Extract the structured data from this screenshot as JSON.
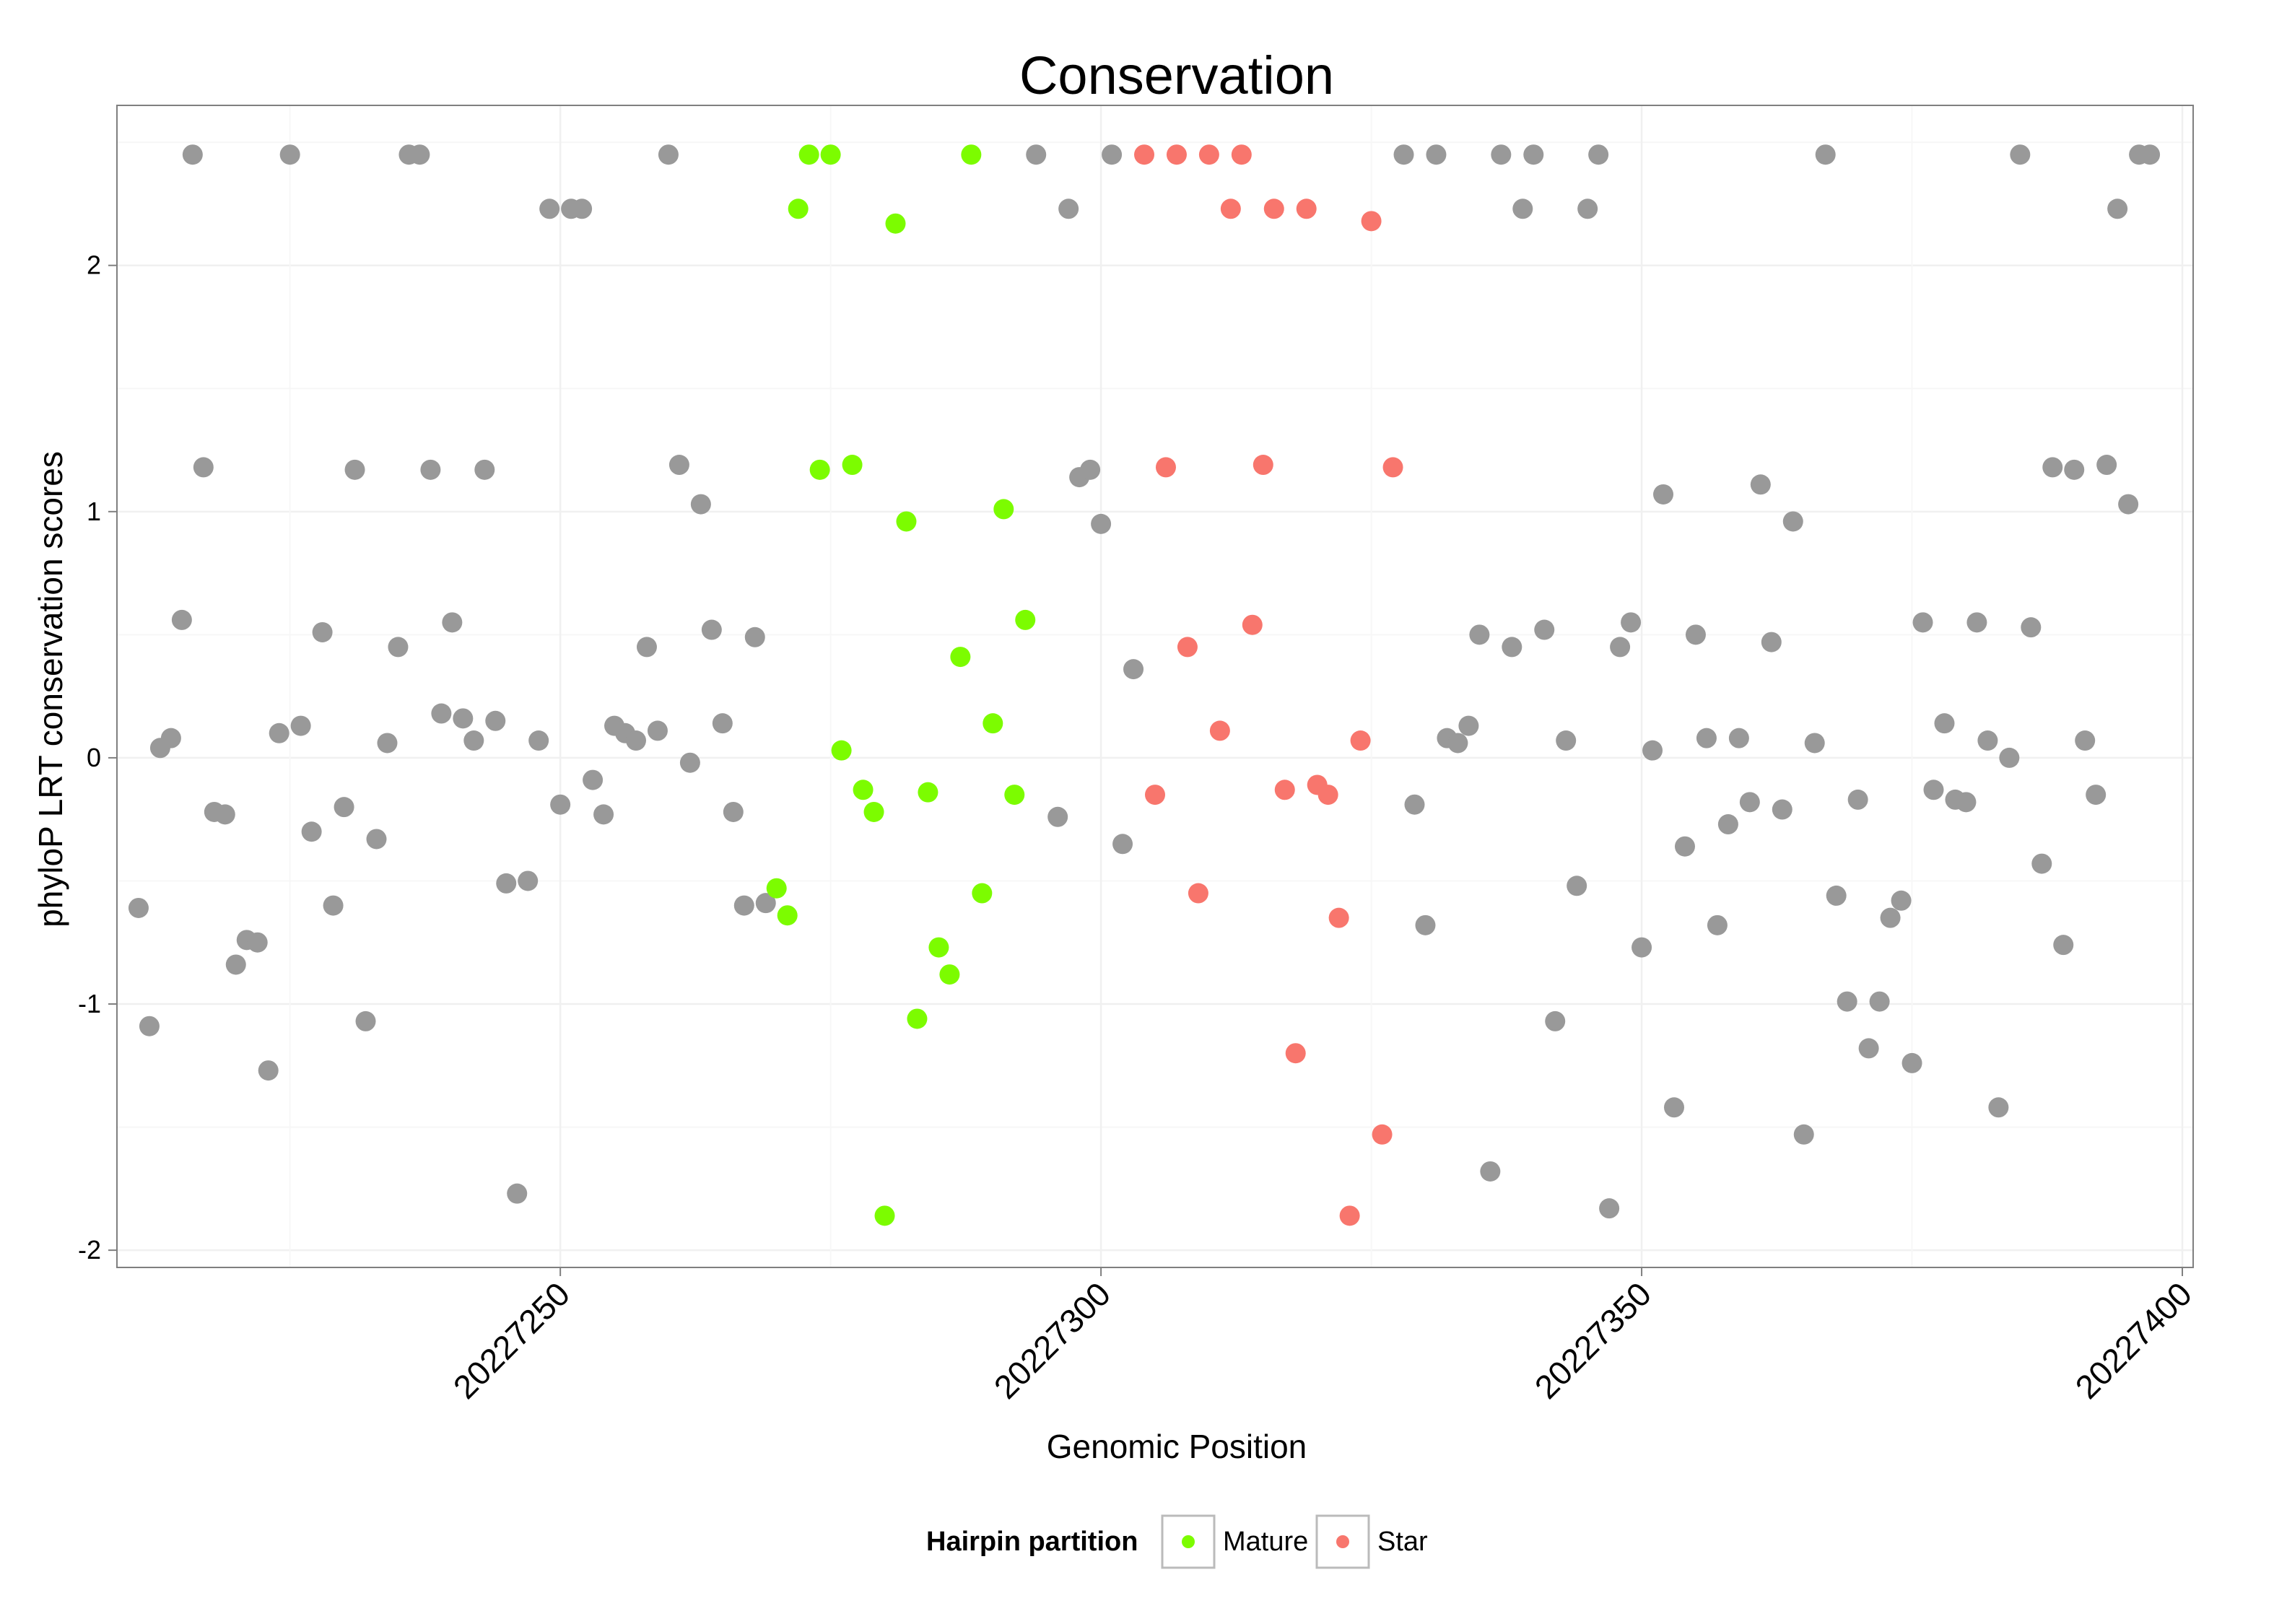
{
  "chart_data": {
    "type": "scatter",
    "title": "Conservation",
    "xlabel": "Genomic Position",
    "ylabel": "phyloP LRT conservation scores",
    "xlim": [
      20227209,
      20227401
    ],
    "ylim": [
      -2.07,
      2.65
    ],
    "x_ticks": [
      {
        "value": 20227250,
        "label": "20227250"
      },
      {
        "value": 20227300,
        "label": "20227300"
      },
      {
        "value": 20227350,
        "label": "20227350"
      },
      {
        "value": 20227400,
        "label": "20227400"
      }
    ],
    "y_ticks": [
      {
        "value": -2,
        "label": "-2"
      },
      {
        "value": -1,
        "label": "-1"
      },
      {
        "value": 0,
        "label": "0"
      },
      {
        "value": 1,
        "label": "1"
      },
      {
        "value": 2,
        "label": "2"
      }
    ],
    "grid": true,
    "legend": {
      "title": "Hairpin partition",
      "position": "bottom",
      "entries": [
        {
          "label": "Mature",
          "color": "#7cfc00"
        },
        {
          "label": "Star",
          "color": "#f8766d"
        }
      ]
    },
    "colors": {
      "other": "#999999",
      "mature": "#7cfc00",
      "star": "#f8766d"
    },
    "series": [
      {
        "group": "other",
        "color": "#999999",
        "points": [
          [
            20227211,
            -0.61
          ],
          [
            20227212,
            -1.09
          ],
          [
            20227213,
            0.04
          ],
          [
            20227214,
            0.08
          ],
          [
            20227215,
            0.56
          ],
          [
            20227216,
            2.45
          ],
          [
            20227217,
            1.18
          ],
          [
            20227218,
            -0.22
          ],
          [
            20227219,
            -0.23
          ],
          [
            20227220,
            -0.84
          ],
          [
            20227221,
            -0.74
          ],
          [
            20227222,
            -0.75
          ],
          [
            20227223,
            -1.27
          ],
          [
            20227224,
            0.1
          ],
          [
            20227225,
            2.45
          ],
          [
            20227226,
            0.13
          ],
          [
            20227227,
            -0.3
          ],
          [
            20227228,
            0.51
          ],
          [
            20227229,
            -0.6
          ],
          [
            20227230,
            -0.2
          ],
          [
            20227231,
            1.17
          ],
          [
            20227232,
            -1.07
          ],
          [
            20227233,
            -0.33
          ],
          [
            20227234,
            0.06
          ],
          [
            20227235,
            0.45
          ],
          [
            20227236,
            2.45
          ],
          [
            20227237,
            2.45
          ],
          [
            20227238,
            1.17
          ],
          [
            20227239,
            0.18
          ],
          [
            20227240,
            0.55
          ],
          [
            20227241,
            0.16
          ],
          [
            20227242,
            0.07
          ],
          [
            20227243,
            1.17
          ],
          [
            20227244,
            0.15
          ],
          [
            20227245,
            -0.51
          ],
          [
            20227246,
            -1.77
          ],
          [
            20227247,
            -0.5
          ],
          [
            20227248,
            0.07
          ],
          [
            20227249,
            2.23
          ],
          [
            20227250,
            -0.19
          ],
          [
            20227251,
            2.23
          ],
          [
            20227252,
            2.23
          ],
          [
            20227253,
            -0.09
          ],
          [
            20227254,
            -0.23
          ],
          [
            20227255,
            0.13
          ],
          [
            20227256,
            0.1
          ],
          [
            20227257,
            0.07
          ],
          [
            20227258,
            0.45
          ],
          [
            20227259,
            0.11
          ],
          [
            20227260,
            2.45
          ],
          [
            20227261,
            1.19
          ],
          [
            20227262,
            -0.02
          ],
          [
            20227263,
            1.03
          ],
          [
            20227264,
            0.52
          ],
          [
            20227265,
            0.14
          ],
          [
            20227266,
            -0.22
          ],
          [
            20227267,
            -0.6
          ],
          [
            20227268,
            0.49
          ],
          [
            20227269,
            -0.59
          ],
          [
            20227294,
            2.45
          ],
          [
            20227296,
            -0.24
          ],
          [
            20227297,
            2.23
          ],
          [
            20227298,
            1.14
          ],
          [
            20227299,
            1.17
          ],
          [
            20227300,
            0.95
          ],
          [
            20227301,
            2.45
          ],
          [
            20227302,
            -0.35
          ],
          [
            20227303,
            0.36
          ],
          [
            20227328,
            2.45
          ],
          [
            20227329,
            -0.19
          ],
          [
            20227330,
            -0.68
          ],
          [
            20227331,
            2.45
          ],
          [
            20227332,
            0.08
          ],
          [
            20227333,
            0.06
          ],
          [
            20227334,
            0.13
          ],
          [
            20227335,
            0.5
          ],
          [
            20227336,
            -1.68
          ],
          [
            20227337,
            2.45
          ],
          [
            20227338,
            0.45
          ],
          [
            20227339,
            2.23
          ],
          [
            20227340,
            2.45
          ],
          [
            20227341,
            0.52
          ],
          [
            20227342,
            -1.07
          ],
          [
            20227343,
            0.07
          ],
          [
            20227344,
            -0.52
          ],
          [
            20227345,
            2.23
          ],
          [
            20227346,
            2.45
          ],
          [
            20227347,
            -1.83
          ],
          [
            20227348,
            0.45
          ],
          [
            20227349,
            0.55
          ],
          [
            20227350,
            -0.77
          ],
          [
            20227351,
            0.03
          ],
          [
            20227352,
            1.07
          ],
          [
            20227353,
            -1.42
          ],
          [
            20227354,
            -0.36
          ],
          [
            20227355,
            0.5
          ],
          [
            20227356,
            0.08
          ],
          [
            20227357,
            -0.68
          ],
          [
            20227358,
            -0.27
          ],
          [
            20227359,
            0.08
          ],
          [
            20227360,
            -0.18
          ],
          [
            20227361,
            1.11
          ],
          [
            20227362,
            0.47
          ],
          [
            20227363,
            -0.21
          ],
          [
            20227364,
            0.96
          ],
          [
            20227365,
            -1.53
          ],
          [
            20227366,
            0.06
          ],
          [
            20227367,
            2.45
          ],
          [
            20227368,
            -0.56
          ],
          [
            20227369,
            -0.99
          ],
          [
            20227370,
            -0.17
          ],
          [
            20227371,
            -1.18
          ],
          [
            20227372,
            -0.99
          ],
          [
            20227373,
            -0.65
          ],
          [
            20227374,
            -0.58
          ],
          [
            20227375,
            -1.24
          ],
          [
            20227376,
            0.55
          ],
          [
            20227377,
            -0.13
          ],
          [
            20227378,
            0.14
          ],
          [
            20227379,
            -0.17
          ],
          [
            20227380,
            -0.18
          ],
          [
            20227381,
            0.55
          ],
          [
            20227382,
            0.07
          ],
          [
            20227383,
            -1.42
          ],
          [
            20227384,
            0.0
          ],
          [
            20227385,
            2.45
          ],
          [
            20227386,
            0.53
          ],
          [
            20227387,
            -0.43
          ],
          [
            20227388,
            1.18
          ],
          [
            20227389,
            -0.76
          ],
          [
            20227390,
            1.17
          ],
          [
            20227391,
            0.07
          ],
          [
            20227392,
            -0.15
          ],
          [
            20227393,
            1.19
          ],
          [
            20227394,
            2.23
          ],
          [
            20227395,
            1.03
          ],
          [
            20227396,
            2.45
          ],
          [
            20227397,
            2.45
          ]
        ]
      },
      {
        "group": "mature",
        "color": "#7cfc00",
        "points": [
          [
            20227270,
            -0.53
          ],
          [
            20227271,
            -0.64
          ],
          [
            20227272,
            2.23
          ],
          [
            20227273,
            2.45
          ],
          [
            20227274,
            1.17
          ],
          [
            20227275,
            2.45
          ],
          [
            20227276,
            0.03
          ],
          [
            20227277,
            1.19
          ],
          [
            20227278,
            -0.13
          ],
          [
            20227279,
            -0.22
          ],
          [
            20227280,
            -1.86
          ],
          [
            20227281,
            2.17
          ],
          [
            20227282,
            0.96
          ],
          [
            20227283,
            -1.06
          ],
          [
            20227284,
            -0.14
          ],
          [
            20227285,
            -0.77
          ],
          [
            20227286,
            -0.88
          ],
          [
            20227287,
            0.41
          ],
          [
            20227288,
            2.45
          ],
          [
            20227289,
            -0.55
          ],
          [
            20227290,
            0.14
          ],
          [
            20227291,
            1.01
          ],
          [
            20227292,
            -0.15
          ],
          [
            20227293,
            0.56
          ]
        ]
      },
      {
        "group": "star",
        "color": "#f8766d",
        "points": [
          [
            20227304,
            2.45
          ],
          [
            20227305,
            -0.15
          ],
          [
            20227306,
            1.18
          ],
          [
            20227307,
            2.45
          ],
          [
            20227308,
            0.45
          ],
          [
            20227309,
            -0.55
          ],
          [
            20227310,
            2.45
          ],
          [
            20227311,
            0.11
          ],
          [
            20227312,
            2.23
          ],
          [
            20227313,
            2.45
          ],
          [
            20227314,
            0.54
          ],
          [
            20227315,
            1.19
          ],
          [
            20227316,
            2.23
          ],
          [
            20227317,
            -0.13
          ],
          [
            20227318,
            -1.2
          ],
          [
            20227319,
            2.23
          ],
          [
            20227320,
            -0.11
          ],
          [
            20227321,
            -0.15
          ],
          [
            20227322,
            -0.65
          ],
          [
            20227323,
            -1.86
          ],
          [
            20227324,
            0.07
          ],
          [
            20227325,
            2.18
          ],
          [
            20227326,
            -1.53
          ],
          [
            20227327,
            1.18
          ]
        ]
      }
    ]
  }
}
